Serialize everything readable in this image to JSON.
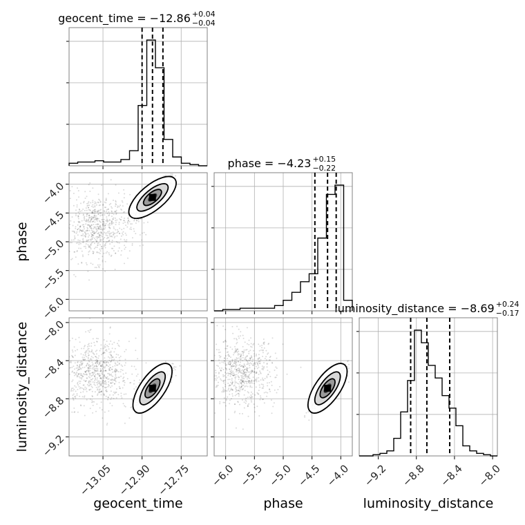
{
  "chart_data": {
    "type": "corner",
    "parameters": [
      "geocent_time",
      "phase",
      "luminosity_distance"
    ],
    "axis_labels": {
      "geocent_time": "geocent_time",
      "phase": "phase",
      "luminosity_distance": "luminosity_distance"
    },
    "ranges": {
      "geocent_time": [
        -13.18,
        -12.65
      ],
      "phase": [
        -6.2,
        -3.8
      ],
      "luminosity_distance": [
        -9.4,
        -7.95
      ]
    },
    "ticks": {
      "geocent_time": [
        -13.05,
        -12.9,
        -12.75
      ],
      "phase": [
        -6.0,
        -5.5,
        -5.0,
        -4.5,
        -4.0
      ],
      "luminosity_distance": [
        -9.2,
        -8.8,
        -8.4,
        -8.0
      ]
    },
    "tick_labels": {
      "geocent_time": [
        "−13.05",
        "−12.90",
        "−12.75"
      ],
      "phase": [
        "−6.0",
        "−5.5",
        "−5.0",
        "−4.5",
        "−4.0"
      ],
      "luminosity_distance": [
        "−9.2",
        "−8.8",
        "−8.4",
        "−8.0"
      ]
    },
    "titles": {
      "geocent_time": {
        "main": "geocent_time = −12.86",
        "sup": "+0.04",
        "sub": "−0.04"
      },
      "phase": {
        "main": "phase = −4.23",
        "sup": "+0.15",
        "sub": "−0.22"
      },
      "luminosity_distance": {
        "main": "luminosity_distance = −8.69",
        "sup": "+0.24",
        "sub": "−0.17"
      }
    },
    "quantiles": {
      "geocent_time": [
        -12.9,
        -12.86,
        -12.82
      ],
      "phase": [
        -4.45,
        -4.23,
        -4.08
      ],
      "luminosity_distance": [
        -8.86,
        -8.69,
        -8.45
      ]
    },
    "histograms": {
      "geocent_time": [
        2,
        3,
        3,
        4,
        3,
        3,
        5,
        12,
        48,
        100,
        78,
        21,
        7,
        2,
        1,
        0
      ],
      "phase": [
        0,
        1,
        1,
        2,
        2,
        2,
        2,
        4,
        8,
        14,
        22,
        28,
        55,
        88,
        95,
        8
      ],
      "luminosity_distance": [
        0,
        0,
        1,
        2,
        4,
        14,
        35,
        60,
        100,
        90,
        72,
        62,
        48,
        38,
        24,
        8,
        4,
        2,
        1,
        0
      ]
    },
    "hist_ytick_fractions": [
      0.33,
      0.66,
      0.99
    ],
    "grid": true
  }
}
